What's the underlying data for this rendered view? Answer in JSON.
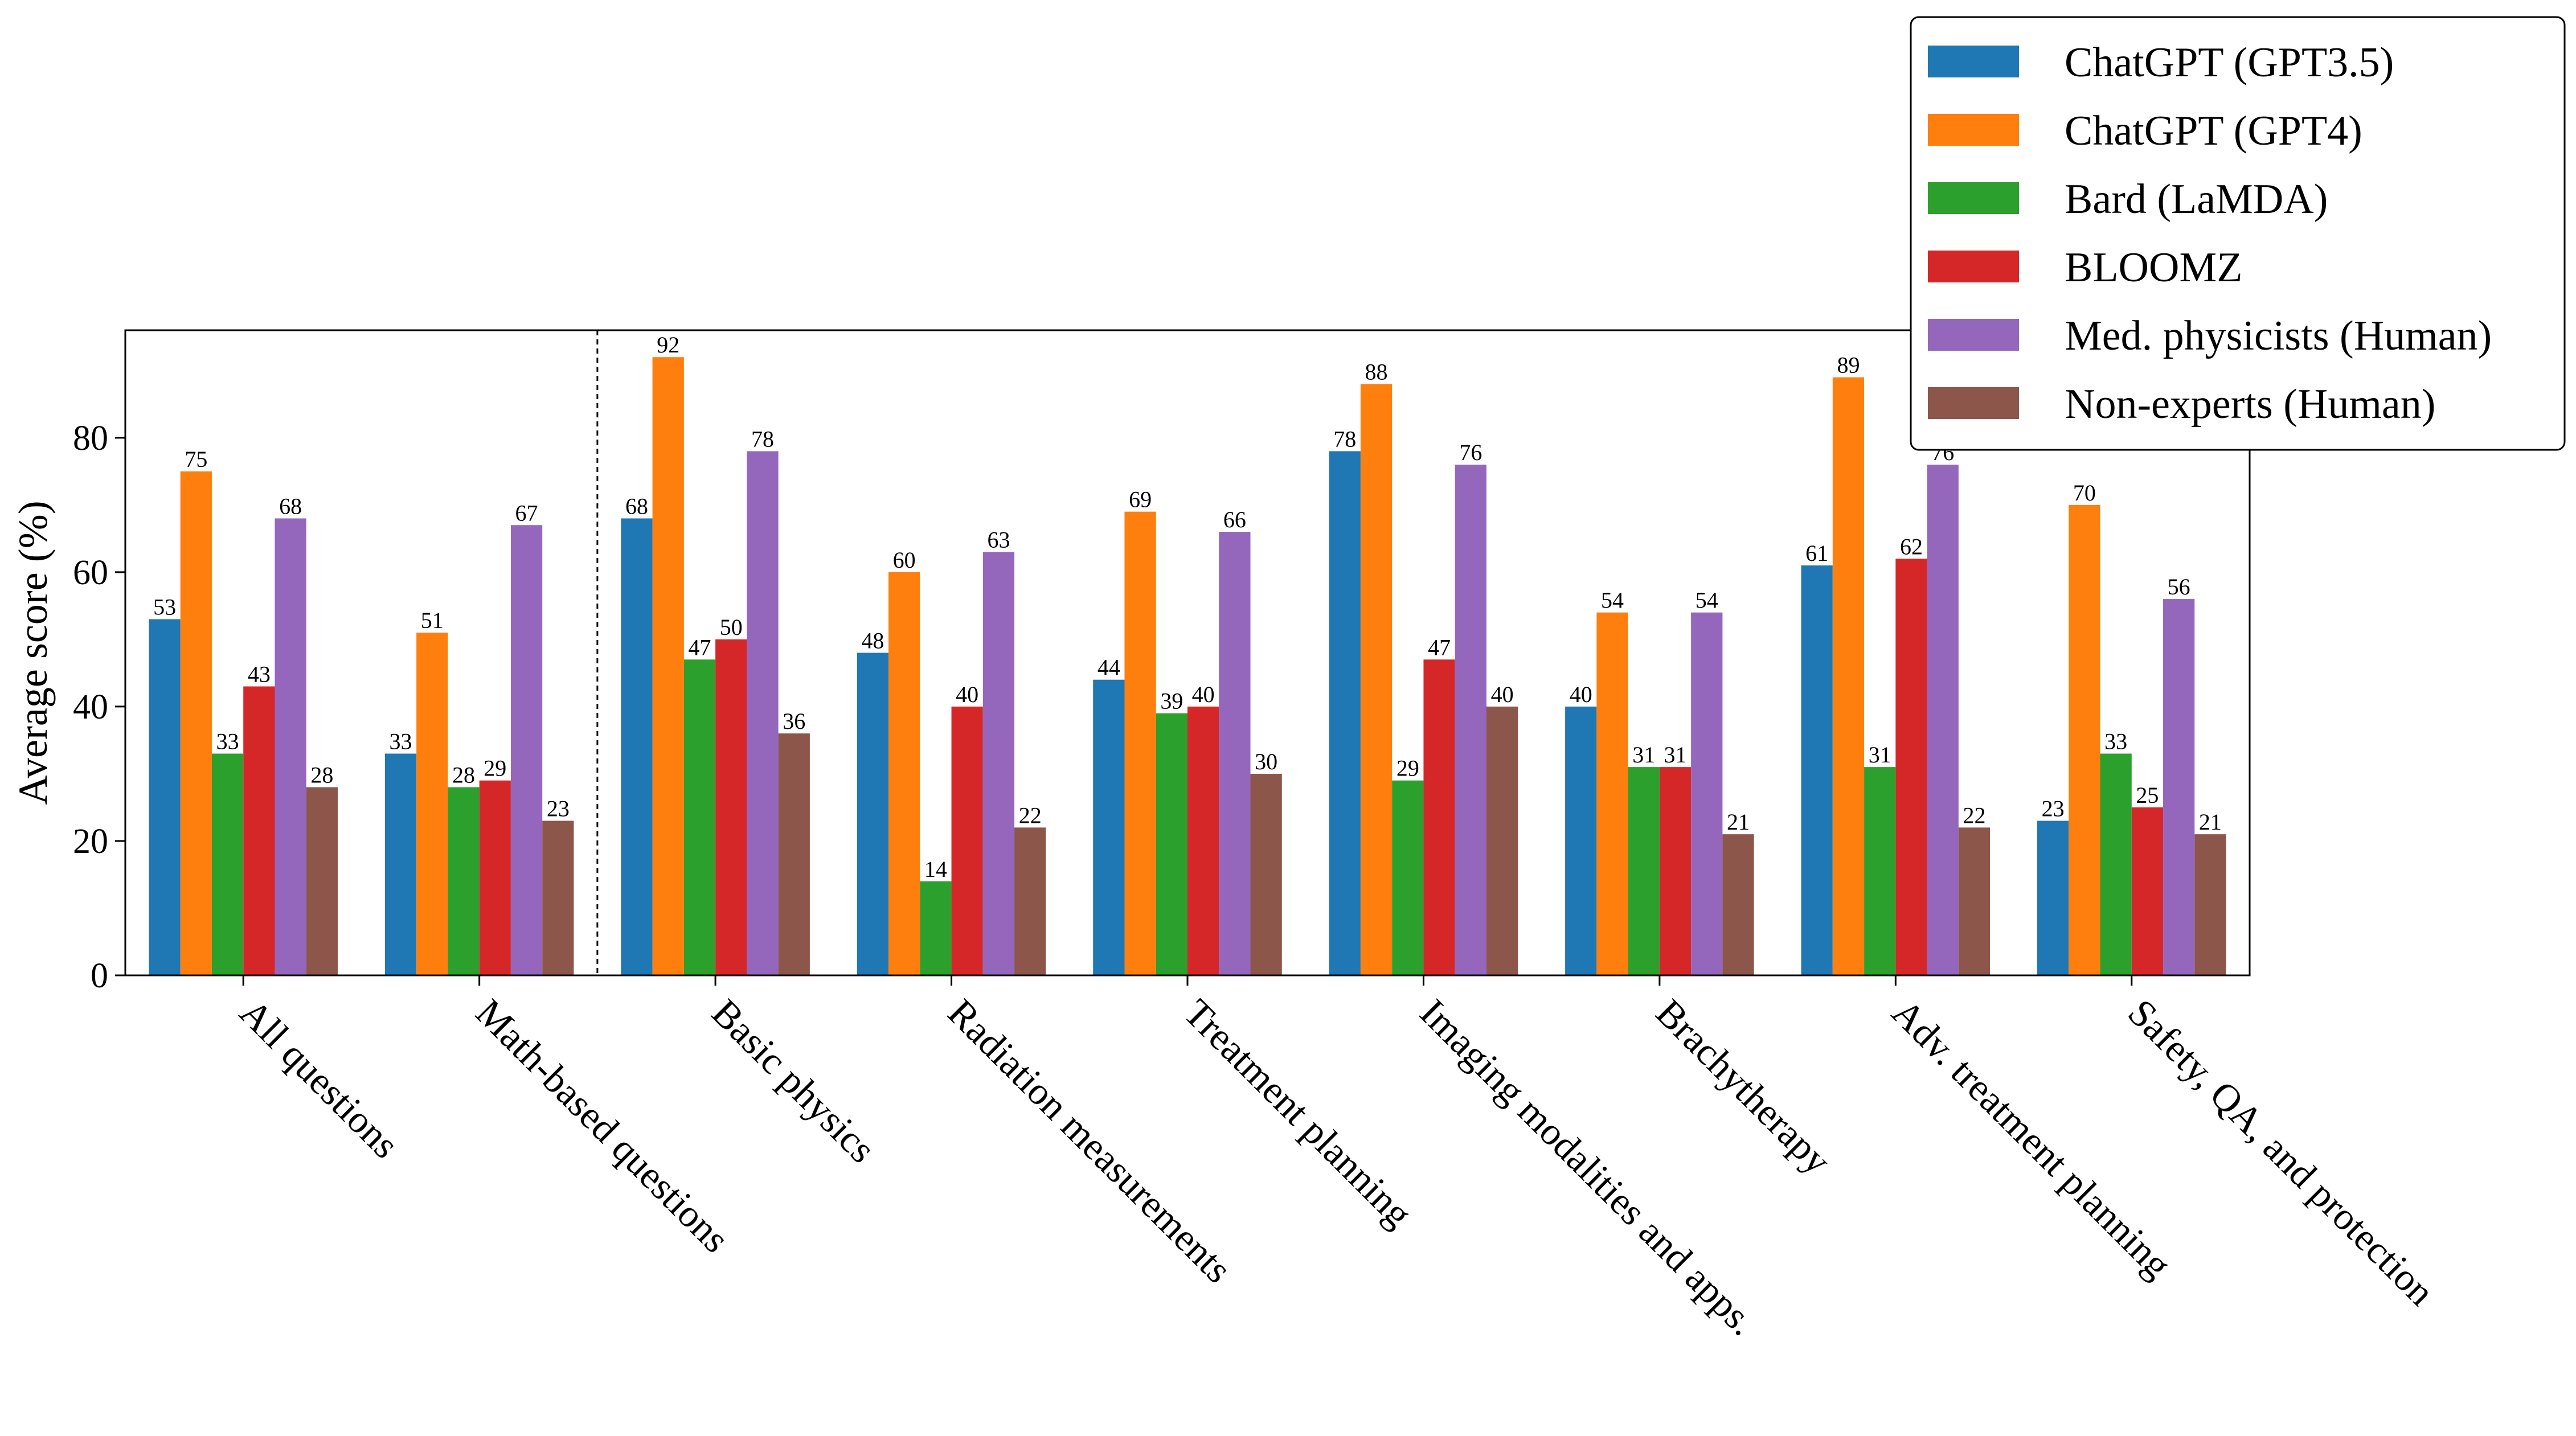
{
  "chart_data": {
    "type": "bar",
    "title": "",
    "xlabel": "",
    "ylabel": "Average score (%)",
    "ylim": [
      0,
      96
    ],
    "yticks": [
      0,
      20,
      40,
      60,
      80
    ],
    "grid": false,
    "legend_position": "top-right",
    "separator_after_category": "Math-based questions",
    "categories": [
      "All questions",
      "Math-based questions",
      "Basic physics",
      "Radiation measurements",
      "Treatment planning",
      "Imaging modalities and apps.",
      "Brachytherapy",
      "Adv. treatment planning",
      "Safety, QA, and protection"
    ],
    "series": [
      {
        "name": "ChatGPT (GPT3.5)",
        "color": "#1f77b4",
        "values": [
          53,
          33,
          68,
          48,
          44,
          78,
          40,
          61,
          23
        ]
      },
      {
        "name": "ChatGPT (GPT4)",
        "color": "#ff7f0e",
        "values": [
          75,
          51,
          92,
          60,
          69,
          88,
          54,
          89,
          70
        ]
      },
      {
        "name": "Bard (LaMDA)",
        "color": "#2ca02c",
        "values": [
          33,
          28,
          47,
          14,
          39,
          29,
          31,
          31,
          33
        ]
      },
      {
        "name": "BLOOMZ",
        "color": "#d62728",
        "values": [
          43,
          29,
          50,
          40,
          40,
          47,
          31,
          62,
          25
        ]
      },
      {
        "name": "Med. physicists (Human)",
        "color": "#9467bd",
        "values": [
          68,
          67,
          78,
          63,
          66,
          76,
          54,
          76,
          56
        ]
      },
      {
        "name": "Non-experts (Human)",
        "color": "#8c564b",
        "values": [
          28,
          23,
          36,
          22,
          30,
          40,
          21,
          22,
          21
        ]
      }
    ]
  }
}
